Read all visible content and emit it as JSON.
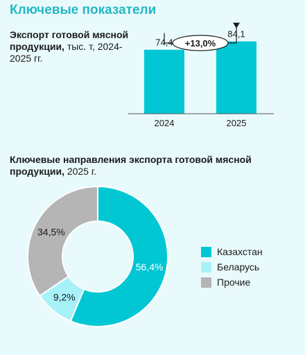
{
  "page_title": "Ключевые показатели",
  "colors": {
    "accent": "#00c7d3",
    "light": "#a6f2f8",
    "gray": "#b5b5b5",
    "title": "#22b8c4"
  },
  "chart_data": [
    {
      "type": "bar",
      "title_bold": "Экспорт готовой мясной продукции,",
      "title_normal": "тыс. т, 2024-2025 гг.",
      "categories": [
        "2024",
        "2025"
      ],
      "values": [
        74.4,
        84.1
      ],
      "value_labels": [
        "74,4",
        "84,1"
      ],
      "ylim": [
        0,
        100
      ],
      "annotation": "+13,0%",
      "grid": false
    },
    {
      "type": "pie",
      "title_bold": "Ключевые направления экспорта готовой мясной продукции,",
      "title_normal": "2025 г.",
      "donut": true,
      "labels": [
        "Казахстан",
        "Беларусь",
        "Прочие"
      ],
      "values": [
        56.4,
        9.2,
        34.5
      ],
      "value_labels": [
        "56,4%",
        "9,2%",
        "34,5%"
      ],
      "colors": [
        "#00c7d3",
        "#a6f2f8",
        "#b5b5b5"
      ],
      "legend": "right"
    }
  ]
}
